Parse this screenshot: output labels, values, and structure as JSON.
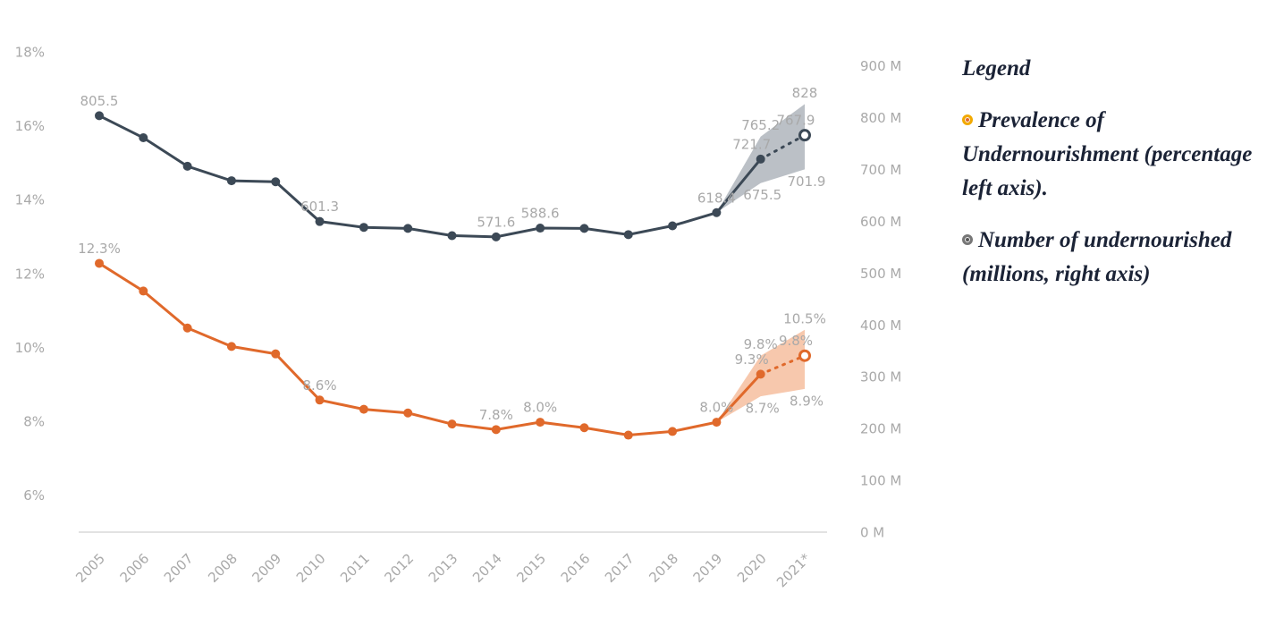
{
  "chart_data": {
    "type": "line",
    "categories": [
      "2005",
      "2006",
      "2007",
      "2008",
      "2009",
      "2010",
      "2011",
      "2012",
      "2013",
      "2014",
      "2015",
      "2016",
      "2017",
      "2018",
      "2019",
      "2020",
      "2021*"
    ],
    "series": [
      {
        "name": "Prevalence of Undernourishment (percentage left axis).",
        "color": "#e0692b",
        "band_color": "#f4b692",
        "axis": "y",
        "values": [
          12.3,
          11.55,
          10.55,
          10.05,
          9.85,
          8.6,
          8.35,
          8.25,
          7.95,
          7.8,
          8.0,
          7.85,
          7.65,
          7.75,
          8.0,
          9.3,
          9.8
        ],
        "value_labels": [
          "12.3%",
          null,
          null,
          null,
          null,
          "8.6%",
          null,
          null,
          null,
          "7.8%",
          "8.0%",
          null,
          null,
          null,
          "8.0%",
          "9.3%",
          "9.8%"
        ],
        "lower": [
          null,
          null,
          null,
          null,
          null,
          null,
          null,
          null,
          null,
          null,
          null,
          null,
          null,
          null,
          8.0,
          8.7,
          8.9
        ],
        "upper": [
          null,
          null,
          null,
          null,
          null,
          null,
          null,
          null,
          null,
          null,
          null,
          null,
          null,
          null,
          8.0,
          9.8,
          10.5
        ],
        "lower_labels": [
          null,
          null,
          null,
          null,
          null,
          null,
          null,
          null,
          null,
          null,
          null,
          null,
          null,
          null,
          null,
          "8.7%",
          "8.9%"
        ],
        "upper_labels": [
          null,
          null,
          null,
          null,
          null,
          null,
          null,
          null,
          null,
          null,
          null,
          null,
          null,
          null,
          null,
          "9.8%",
          "10.5%"
        ]
      },
      {
        "name": "Number of undernourished (millions, right axis)",
        "color": "#3c4956",
        "band_color": "#a4abb3",
        "axis": "y2",
        "values": [
          805.5,
          763,
          708,
          680,
          678,
          601.3,
          590,
          588,
          574,
          571.6,
          588.6,
          588,
          576,
          593,
          618.4,
          721.7,
          767.9
        ],
        "value_labels": [
          "805.5",
          null,
          null,
          null,
          null,
          "601.3",
          null,
          null,
          null,
          "571.6",
          "588.6",
          null,
          null,
          null,
          "618.4",
          "721.7",
          "767.9"
        ],
        "lower": [
          null,
          null,
          null,
          null,
          null,
          null,
          null,
          null,
          null,
          null,
          null,
          null,
          null,
          null,
          618.4,
          675.5,
          701.9
        ],
        "upper": [
          null,
          null,
          null,
          null,
          null,
          null,
          null,
          null,
          null,
          null,
          null,
          null,
          null,
          null,
          618.4,
          765.2,
          828
        ],
        "lower_labels": [
          null,
          null,
          null,
          null,
          null,
          null,
          null,
          null,
          null,
          null,
          null,
          null,
          null,
          null,
          null,
          "675.5",
          "701.9"
        ],
        "upper_labels": [
          null,
          null,
          null,
          null,
          null,
          null,
          null,
          null,
          null,
          null,
          null,
          null,
          null,
          null,
          null,
          "765.2",
          "828"
        ]
      }
    ],
    "dotted_from_index": 15,
    "ylim": [
      5,
      18
    ],
    "yticks": [
      {
        "value": 6,
        "label": "6%"
      },
      {
        "value": 8,
        "label": "8%"
      },
      {
        "value": 10,
        "label": "10%"
      },
      {
        "value": 12,
        "label": "12%"
      },
      {
        "value": 14,
        "label": "14%"
      },
      {
        "value": 16,
        "label": "16%"
      },
      {
        "value": 18,
        "label": "18%"
      }
    ],
    "y2lim": [
      0,
      927
    ],
    "y2ticks": [
      {
        "value": 0,
        "label": "0 M"
      },
      {
        "value": 100,
        "label": "100 M"
      },
      {
        "value": 200,
        "label": "200 M"
      },
      {
        "value": 300,
        "label": "300 M"
      },
      {
        "value": 400,
        "label": "400 M"
      },
      {
        "value": 500,
        "label": "500 M"
      },
      {
        "value": 600,
        "label": "600 M"
      },
      {
        "value": 700,
        "label": "700 M"
      },
      {
        "value": 800,
        "label": "800 M"
      },
      {
        "value": 900,
        "label": "900 M"
      }
    ],
    "legend": {
      "title": "Legend"
    }
  }
}
